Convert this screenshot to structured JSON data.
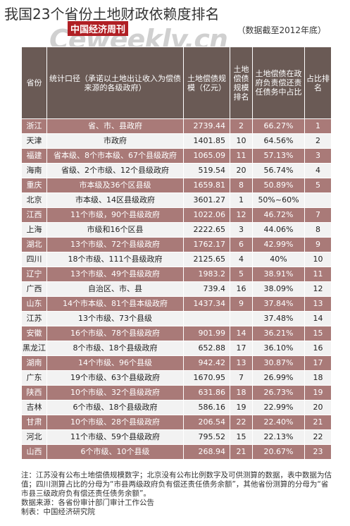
{
  "title": "我国23个省份土地财政依赖度排名",
  "subtitle": "（数据截至2012年底）",
  "watermark": {
    "cn": "中国经济周刊",
    "en": "Ceweekly.cn"
  },
  "colors": {
    "header_bg": "#6a5a55",
    "row_dark": "#a97a78",
    "row_light": "#f2f2f2",
    "logo_red": "#b01f24"
  },
  "headers": {
    "province": "省份",
    "scope": "统计口径（承诺以土地出让收入为偿债来源的各级政府）",
    "scale": "土地偿债规模（亿元）",
    "scale_rank": "土地偿债规模排名",
    "share": "土地偿债在政府负责偿还责任债务中占比",
    "share_rank": "占比排名"
  },
  "rows": [
    {
      "province": "浙江",
      "scope": "省、市、县政府",
      "scale": "2739.44",
      "scale_rank": "2",
      "share": "66.27%",
      "share_rank": "1"
    },
    {
      "province": "天津",
      "scope": "市政府",
      "scale": "1401.85",
      "scale_rank": "10",
      "share": "64.56%",
      "share_rank": "2"
    },
    {
      "province": "福建",
      "scope": "省本级、8个市本级、67个县级政府",
      "scale": "1065.09",
      "scale_rank": "11",
      "share": "57.13%",
      "share_rank": "3"
    },
    {
      "province": "海南",
      "scope": "省级、2个市级、12个县级政府",
      "scale": "519.54",
      "scale_rank": "20",
      "share": "56.74%",
      "share_rank": "4"
    },
    {
      "province": "重庆",
      "scope": "市本级及36个区县级",
      "scale": "1659.81",
      "scale_rank": "8",
      "share": "50.89%",
      "share_rank": "5"
    },
    {
      "province": "北京",
      "scope": "市本级、14区县级政府",
      "scale": "3601.27",
      "scale_rank": "1",
      "share": "50%~60%",
      "share_rank": ""
    },
    {
      "province": "江西",
      "scope": "11个市级，90个县级政府",
      "scale": "1022.06",
      "scale_rank": "12",
      "share": "46.72%",
      "share_rank": "7"
    },
    {
      "province": "上海",
      "scope": "市级和16个区县",
      "scale": "2222.65",
      "scale_rank": "3",
      "share": "44.06%",
      "share_rank": "8"
    },
    {
      "province": "湖北",
      "scope": "13个市级、72个县级政府",
      "scale": "1762.17",
      "scale_rank": "6",
      "share": "42.99%",
      "share_rank": "9"
    },
    {
      "province": "四川",
      "scope": "18个市级、111个县级政府",
      "scale": "2125.65",
      "scale_rank": "4",
      "share": "40%",
      "share_rank": "10"
    },
    {
      "province": "辽宁",
      "scope": "13个市级、49个县级政府",
      "scale": "1983.2",
      "scale_rank": "5",
      "share": "38.91%",
      "share_rank": "11"
    },
    {
      "province": "广西",
      "scope": "自治区、市、县",
      "scale": "739.4",
      "scale_rank": "16",
      "share": "38.09%",
      "share_rank": "12"
    },
    {
      "province": "山东",
      "scope": "14个市本级、81个县本级政府",
      "scale": "1437.34",
      "scale_rank": "9",
      "share": "37.84%",
      "share_rank": "13"
    },
    {
      "province": "江苏",
      "scope": "13个市级、73个县级",
      "scale": "",
      "scale_rank": "",
      "share": "37.48%",
      "share_rank": "14"
    },
    {
      "province": "安徽",
      "scope": "16个市级、78个县级政府",
      "scale": "901.99",
      "scale_rank": "14",
      "share": "36.21%",
      "share_rank": "15"
    },
    {
      "province": "黑龙江",
      "scope": "8个市级、18个县级政府",
      "scale": "652.88",
      "scale_rank": "17",
      "share": "36.10%",
      "share_rank": "16"
    },
    {
      "province": "湖南",
      "scope": "14个市级、96个县级",
      "scale": "942.42",
      "scale_rank": "13",
      "share": "30.87%",
      "share_rank": "17"
    },
    {
      "province": "广东",
      "scope": "19个市级、63个县级政府",
      "scale": "1670.95",
      "scale_rank": "7",
      "share": "26.99%",
      "share_rank": "18"
    },
    {
      "province": "陕西",
      "scope": "10个市级、32个县级政府",
      "scale": "631.86",
      "scale_rank": "18",
      "share": "26.73%",
      "share_rank": "19"
    },
    {
      "province": "吉林",
      "scope": "6个市级、18个县级政府",
      "scale": "586.16",
      "scale_rank": "19",
      "share": "22.99%",
      "share_rank": "20"
    },
    {
      "province": "甘肃",
      "scope": "10个市级、28个县级政府",
      "scale": "206.54",
      "scale_rank": "22",
      "share": "22.40%",
      "share_rank": "21"
    },
    {
      "province": "河北",
      "scope": "11个市级、59个县级政府",
      "scale": "795.52",
      "scale_rank": "15",
      "share": "22.13%",
      "share_rank": "22"
    },
    {
      "province": "山西",
      "scope": "6个市级、10个县级",
      "scale": "268.94",
      "scale_rank": "21",
      "share": "20.67%",
      "share_rank": "23"
    }
  ],
  "note": "注：江苏没有公布土地偿债规模数字；北京没有公布比例数字及可供测算的数据，表中数据为估值；四川测算占比的分母为“市县两级政府负有偿还责任债务余额”，其他省份测算的分母为“省市县三级政府负有偿还责任债务余额”。",
  "source": "数据来源：各省份审计部门审计工作公告",
  "maker": "制表：中国经济研究院"
}
